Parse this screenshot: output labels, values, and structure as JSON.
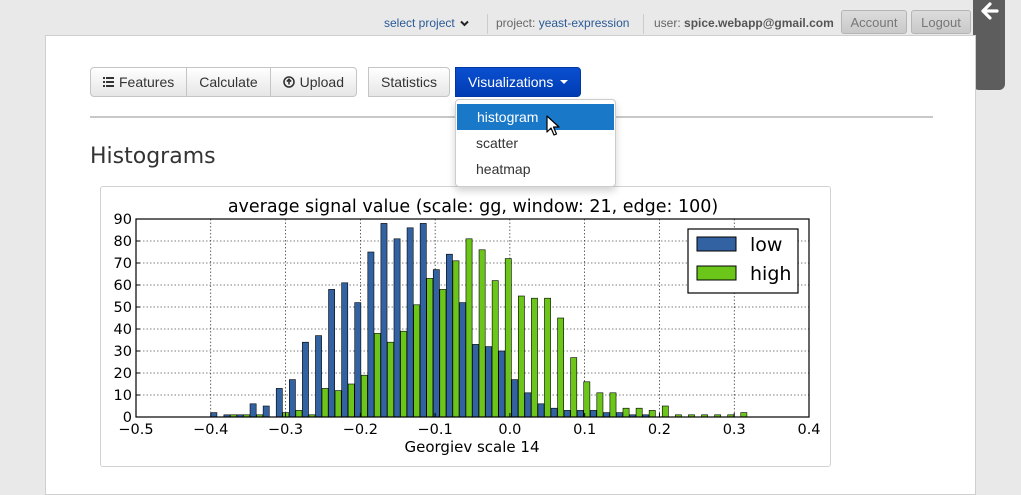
{
  "topbar": {
    "select_project": "select project",
    "project_label": "project:",
    "project_name": "yeast-expression",
    "user_label": "user:",
    "user_email": "spice.webapp@gmail.com",
    "account": "Account",
    "logout": "Logout"
  },
  "toolbar": {
    "features": "Features",
    "calculate": "Calculate",
    "upload": "Upload",
    "statistics": "Statistics",
    "visualizations": "Visualizations"
  },
  "dropdown": {
    "items": [
      {
        "label": "histogram",
        "active": true
      },
      {
        "label": "scatter",
        "active": false
      },
      {
        "label": "heatmap",
        "active": false
      }
    ]
  },
  "page": {
    "heading": "Histograms"
  },
  "chart_data": {
    "type": "bar",
    "title": "average signal value (scale: gg, window: 21, edge: 100)",
    "xlabel": "Georgiev scale 14",
    "ylabel": "",
    "xlim": [
      -0.5,
      0.4
    ],
    "ylim": [
      0,
      90
    ],
    "xticks": [
      "−0.5",
      "−0.4",
      "−0.3",
      "−0.2",
      "−0.1",
      "0.0",
      "0.1",
      "0.2",
      "0.3",
      "0.4"
    ],
    "yticks": [
      "0",
      "10",
      "20",
      "30",
      "40",
      "50",
      "60",
      "70",
      "80",
      "90"
    ],
    "grid": true,
    "legend_position": "top-right",
    "colors": {
      "low": "#3362a3",
      "high": "#6cc61a"
    },
    "bin_width": 0.0175,
    "series": [
      {
        "name": "low",
        "x": [
          -0.4175,
          -0.4,
          -0.3825,
          -0.365,
          -0.3475,
          -0.33,
          -0.3125,
          -0.295,
          -0.2775,
          -0.26,
          -0.2425,
          -0.225,
          -0.2075,
          -0.19,
          -0.1725,
          -0.155,
          -0.1375,
          -0.12,
          -0.1025,
          -0.085,
          -0.0675,
          -0.05,
          -0.0325,
          -0.015,
          0.0025,
          0.02,
          0.0375,
          0.055,
          0.0725,
          0.09,
          0.1075,
          0.125,
          0.1425,
          0.16,
          0.1775,
          0.195,
          0.2125,
          0.23,
          0.2475
        ],
        "values": [
          0,
          2,
          1,
          1,
          6,
          5,
          13,
          17,
          34,
          37,
          58,
          61,
          52,
          75,
          88,
          81,
          86,
          88,
          67,
          74,
          52,
          33,
          32,
          30,
          17,
          11,
          6,
          4,
          3,
          3,
          3,
          2,
          2,
          1,
          1,
          0,
          0,
          0,
          0
        ]
      },
      {
        "name": "high",
        "x": [
          -0.4,
          -0.3825,
          -0.365,
          -0.3475,
          -0.33,
          -0.3125,
          -0.295,
          -0.2775,
          -0.26,
          -0.2425,
          -0.225,
          -0.2075,
          -0.19,
          -0.1725,
          -0.155,
          -0.1375,
          -0.12,
          -0.1025,
          -0.085,
          -0.0675,
          -0.05,
          -0.0325,
          -0.015,
          0.0025,
          0.02,
          0.0375,
          0.055,
          0.0725,
          0.09,
          0.1075,
          0.125,
          0.1425,
          0.16,
          0.1775,
          0.195,
          0.2125,
          0.23,
          0.2475,
          0.265,
          0.2825,
          0.3
        ],
        "values": [
          0,
          1,
          1,
          1,
          0,
          2,
          3,
          1,
          13,
          12,
          15,
          19,
          38,
          34,
          39,
          51,
          63,
          58,
          71,
          81,
          76,
          62,
          72,
          55,
          54,
          54,
          45,
          27,
          16,
          11,
          11,
          4,
          4,
          3,
          5,
          1,
          1,
          1,
          1,
          1,
          2
        ]
      }
    ]
  }
}
